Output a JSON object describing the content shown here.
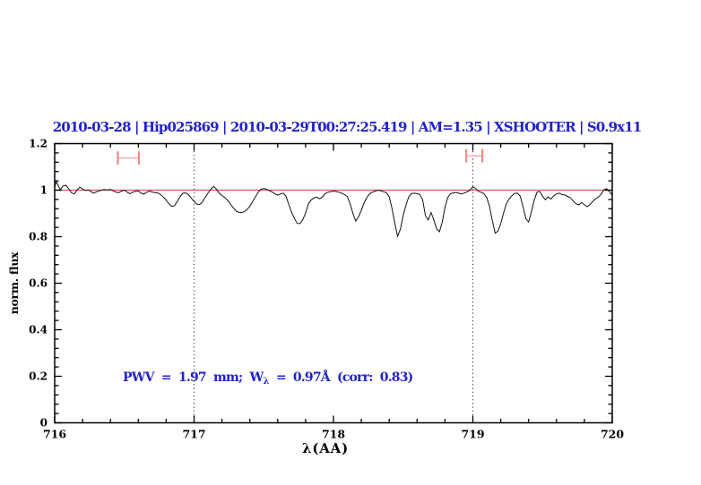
{
  "title": "2010-03-28 | Hip025869 | 2010-03-29T00:27:25.419 | AM=1.35 | XSHOOTER | S0.9x11",
  "annotation": {
    "part1": "PWV  =  1.97  mm;  W",
    "sub": "λ",
    "part2": "  =  0.97Å  (corr:  0.83)"
  },
  "colors": {
    "text_blue": "#2222cc",
    "reference_line_red": "#e05555",
    "marker_red": "#ee8c8c",
    "marker_bar_red": "#f5b0b0",
    "spectrum_black": "#111111",
    "axis_black": "#000000"
  },
  "axes": {
    "xlabel": "λ(AA)",
    "ylabel": "norm. flux",
    "xtick_labels": [
      "716",
      "717",
      "718",
      "719",
      "720"
    ],
    "ytick_labels": [
      "0",
      "0.2",
      "0.4",
      "0.6",
      "0.8",
      "1",
      "1.2"
    ],
    "xlim": [
      716,
      720
    ],
    "ylim": [
      0,
      1.2
    ],
    "x_minor_step": 0.2,
    "y_minor_step": 0.04,
    "dotted_guides_x": [
      717,
      719
    ]
  },
  "reference_line_y": 1.0,
  "markers": [
    {
      "x1": 716.453,
      "x2": 716.604,
      "y": 1.138
    },
    {
      "x1": 718.952,
      "x2": 719.068,
      "y": 1.148
    }
  ],
  "chart_data": {
    "type": "line",
    "title": "2010-03-28 | Hip025869 | 2010-03-29T00:27:25.419 | AM=1.35 | XSHOOTER | S0.9x11",
    "xlabel": "λ(AA)",
    "ylabel": "norm. flux",
    "xlim": [
      716,
      720
    ],
    "ylim": [
      0,
      1.2
    ],
    "grid": false,
    "x": [
      716.0,
      716.01,
      716.04,
      716.06,
      716.08,
      716.1,
      716.12,
      716.14,
      716.16,
      716.18,
      716.2,
      716.22,
      716.24,
      716.26,
      716.28,
      716.3,
      716.32,
      716.34,
      716.36,
      716.38,
      716.4,
      716.42,
      716.44,
      716.46,
      716.48,
      716.5,
      716.52,
      716.54,
      716.56,
      716.58,
      716.6,
      716.62,
      716.64,
      716.66,
      716.68,
      716.7,
      716.72,
      716.74,
      716.76,
      716.78,
      716.8,
      716.82,
      716.84,
      716.86,
      716.88,
      716.9,
      716.92,
      716.94,
      716.96,
      716.98,
      717.0,
      717.02,
      717.04,
      717.06,
      717.08,
      717.1,
      717.12,
      717.14,
      717.16,
      717.18,
      717.2,
      717.22,
      717.24,
      717.26,
      717.28,
      717.3,
      717.32,
      717.34,
      717.36,
      717.38,
      717.4,
      717.42,
      717.44,
      717.46,
      717.48,
      717.5,
      717.52,
      717.54,
      717.56,
      717.58,
      717.6,
      717.62,
      717.64,
      717.66,
      717.68,
      717.7,
      717.72,
      717.74,
      717.76,
      717.78,
      717.8,
      717.82,
      717.84,
      717.86,
      717.88,
      717.9,
      717.92,
      717.94,
      717.96,
      717.98,
      718.0,
      718.02,
      718.04,
      718.06,
      718.08,
      718.1,
      718.12,
      718.14,
      718.16,
      718.18,
      718.2,
      718.22,
      718.24,
      718.26,
      718.28,
      718.3,
      718.32,
      718.34,
      718.36,
      718.38,
      718.4,
      718.42,
      718.44,
      718.46,
      718.48,
      718.5,
      718.52,
      718.54,
      718.56,
      718.58,
      718.6,
      718.62,
      718.64,
      718.66,
      718.68,
      718.7,
      718.72,
      718.74,
      718.76,
      718.78,
      718.8,
      718.82,
      718.84,
      718.86,
      718.88,
      718.9,
      718.92,
      718.94,
      718.96,
      718.98,
      719.0,
      719.02,
      719.04,
      719.06,
      719.08,
      719.1,
      719.12,
      719.14,
      719.16,
      719.18,
      719.2,
      719.22,
      719.24,
      719.26,
      719.28,
      719.3,
      719.32,
      719.34,
      719.36,
      719.38,
      719.4,
      719.42,
      719.44,
      719.46,
      719.48,
      719.5,
      719.52,
      719.54,
      719.56,
      719.58,
      719.6,
      719.62,
      719.64,
      719.66,
      719.68,
      719.7,
      719.72,
      719.74,
      719.76,
      719.78,
      719.8,
      719.82,
      719.84,
      719.86,
      719.88,
      719.9,
      719.92,
      719.94,
      719.96,
      719.98,
      720.0
    ],
    "flux": [
      1.012,
      1.038,
      1.002,
      1.018,
      1.021,
      1.006,
      0.989,
      0.983,
      1.0,
      1.013,
      1.005,
      0.998,
      1.002,
      0.994,
      0.987,
      0.993,
      0.997,
      1.001,
      1.003,
      1.0,
      1.004,
      0.997,
      0.991,
      0.989,
      0.996,
      1.0,
      0.991,
      0.985,
      0.991,
      0.995,
      0.997,
      0.987,
      0.983,
      0.991,
      0.996,
      0.992,
      0.989,
      0.988,
      0.981,
      0.97,
      0.957,
      0.941,
      0.93,
      0.933,
      0.952,
      0.973,
      0.987,
      0.988,
      0.981,
      0.966,
      0.951,
      0.94,
      0.938,
      0.949,
      0.969,
      0.988,
      1.004,
      1.016,
      1.005,
      0.987,
      0.977,
      0.969,
      0.957,
      0.941,
      0.925,
      0.911,
      0.905,
      0.904,
      0.907,
      0.917,
      0.931,
      0.951,
      0.971,
      0.991,
      1.004,
      1.007,
      1.004,
      0.998,
      0.992,
      0.985,
      0.978,
      0.984,
      0.987,
      0.974,
      0.938,
      0.903,
      0.878,
      0.857,
      0.856,
      0.873,
      0.902,
      0.941,
      0.958,
      0.966,
      0.97,
      0.963,
      0.97,
      0.985,
      0.991,
      0.993,
      0.996,
      0.994,
      0.991,
      0.987,
      0.981,
      0.971,
      0.94,
      0.899,
      0.867,
      0.886,
      0.913,
      0.946,
      0.969,
      0.985,
      0.991,
      0.996,
      1.0,
      0.997,
      0.993,
      0.989,
      0.971,
      0.922,
      0.858,
      0.802,
      0.832,
      0.892,
      0.936,
      0.971,
      0.985,
      0.987,
      0.985,
      0.981,
      0.958,
      0.89,
      0.872,
      0.904,
      0.872,
      0.833,
      0.821,
      0.862,
      0.926,
      0.969,
      0.985,
      0.988,
      0.99,
      0.987,
      0.983,
      0.988,
      0.993,
      1.001,
      1.015,
      1.007,
      0.995,
      0.991,
      0.985,
      0.967,
      0.928,
      0.868,
      0.815,
      0.824,
      0.856,
      0.901,
      0.941,
      0.962,
      0.976,
      0.986,
      0.987,
      0.974,
      0.928,
      0.878,
      0.863,
      0.906,
      0.956,
      0.991,
      0.995,
      0.974,
      0.959,
      0.971,
      0.962,
      0.976,
      0.984,
      0.987,
      0.981,
      0.979,
      0.973,
      0.967,
      0.953,
      0.941,
      0.937,
      0.946,
      0.938,
      0.929,
      0.938,
      0.951,
      0.963,
      0.969,
      0.983,
      1.001,
      1.006,
      0.994,
      0.977
    ]
  }
}
